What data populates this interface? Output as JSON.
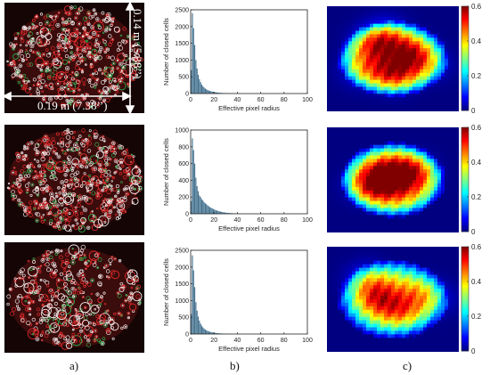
{
  "captions": {
    "a": "a)",
    "b": "b)",
    "c": "c)"
  },
  "dimensions": {
    "width_label": "0.19 m (7.38’’)",
    "height_label": "0.14 m (5.38’’)"
  },
  "chart_data": [
    {
      "type": "bar",
      "xlabel": "Effective pixel radius",
      "ylabel": "Number of closed cells",
      "xlim": [
        0,
        100
      ],
      "ylim": [
        0,
        2500
      ],
      "xticks": [
        0,
        20,
        40,
        60,
        80,
        100
      ],
      "yticks": [
        0,
        500,
        1000,
        1500,
        2000,
        2500
      ],
      "bin_width": 1,
      "x": [
        1,
        2,
        3,
        4,
        5,
        6,
        7,
        8,
        9,
        10,
        11,
        12,
        13,
        14,
        15,
        16,
        17,
        18,
        19,
        20,
        21,
        22,
        23,
        24,
        25,
        26,
        27,
        28,
        29,
        30,
        31,
        32,
        33,
        34,
        35,
        36,
        37,
        38,
        39,
        40
      ],
      "values": [
        700,
        2400,
        1950,
        1450,
        1000,
        750,
        560,
        430,
        340,
        270,
        220,
        180,
        150,
        125,
        105,
        90,
        78,
        68,
        58,
        50,
        43,
        37,
        32,
        28,
        24,
        21,
        18,
        16,
        14,
        12,
        11,
        9,
        8,
        7,
        6,
        5,
        5,
        4,
        3,
        3
      ]
    },
    {
      "type": "bar",
      "xlabel": "Effective pixel radius",
      "ylabel": "Number of closed cells",
      "xlim": [
        0,
        100
      ],
      "ylim": [
        0,
        1000
      ],
      "xticks": [
        0,
        20,
        40,
        60,
        80,
        100
      ],
      "yticks": [
        0,
        200,
        400,
        600,
        800,
        1000
      ],
      "bin_width": 1,
      "x": [
        1,
        2,
        3,
        4,
        5,
        6,
        7,
        8,
        9,
        10,
        11,
        12,
        13,
        14,
        15,
        16,
        17,
        18,
        19,
        20,
        21,
        22,
        23,
        24,
        25,
        26,
        27,
        28,
        29,
        30,
        31,
        32,
        33,
        34,
        35,
        36,
        37,
        38,
        39,
        40,
        41,
        42,
        43,
        44,
        45
      ],
      "values": [
        150,
        900,
        760,
        600,
        430,
        330,
        270,
        220,
        200,
        175,
        160,
        140,
        125,
        115,
        100,
        90,
        80,
        72,
        64,
        57,
        50,
        44,
        39,
        34,
        30,
        26,
        23,
        20,
        17,
        15,
        13,
        11,
        10,
        9,
        8,
        7,
        6,
        5,
        4,
        4,
        3,
        3,
        2,
        2,
        2
      ]
    },
    {
      "type": "bar",
      "xlabel": "Effective pixel radius",
      "ylabel": "Number of closed cells",
      "xlim": [
        0,
        100
      ],
      "ylim": [
        0,
        2500
      ],
      "xticks": [
        0,
        20,
        40,
        60,
        80,
        100
      ],
      "yticks": [
        0,
        500,
        1000,
        1500,
        2000,
        2500
      ],
      "bin_width": 1,
      "x": [
        1,
        2,
        3,
        4,
        5,
        6,
        7,
        8,
        9,
        10,
        11,
        12,
        13,
        14,
        15,
        16,
        17,
        18,
        19,
        20,
        21,
        22,
        23,
        24,
        25,
        26,
        27,
        28,
        29,
        30,
        31,
        32,
        33,
        34,
        35,
        36,
        37,
        38,
        39,
        40
      ],
      "values": [
        600,
        2350,
        1900,
        1400,
        950,
        700,
        520,
        400,
        310,
        250,
        200,
        165,
        135,
        112,
        94,
        80,
        68,
        58,
        50,
        43,
        37,
        32,
        28,
        24,
        21,
        18,
        16,
        14,
        12,
        10,
        9,
        8,
        7,
        6,
        5,
        4,
        4,
        3,
        3,
        2
      ]
    },
    {
      "type": "heatmap",
      "colorbar_ticks": [
        0,
        0.2,
        0.4,
        0.6
      ],
      "colorbar_range": [
        0,
        0.6
      ],
      "colormap": "jet"
    },
    {
      "type": "heatmap",
      "colorbar_ticks": [
        0,
        0.2,
        0.4,
        0.6
      ],
      "colorbar_range": [
        0,
        0.6
      ],
      "colormap": "jet"
    },
    {
      "type": "heatmap",
      "colorbar_ticks": [
        0,
        0.2,
        0.4,
        0.6
      ],
      "colorbar_range": [
        0,
        0.6
      ],
      "colormap": "jet"
    }
  ]
}
